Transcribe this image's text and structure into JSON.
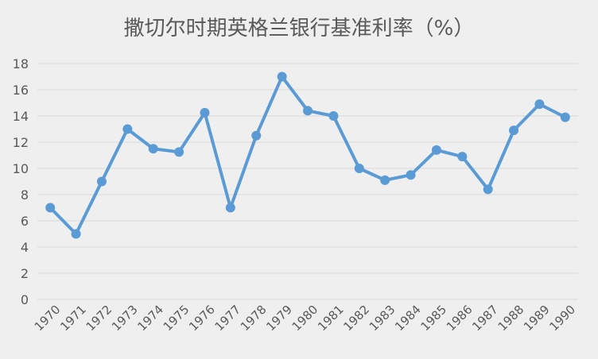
{
  "chart_data": {
    "type": "line",
    "title": "撒切尔时期英格兰银行基准利率（%）",
    "xlabel": "",
    "ylabel": "",
    "categories": [
      "1970",
      "1971",
      "1972",
      "1973",
      "1974",
      "1975",
      "1976",
      "1977",
      "1978",
      "1979",
      "1980",
      "1981",
      "1982",
      "1983",
      "1984",
      "1985",
      "1986",
      "1987",
      "1988",
      "1989",
      "1990"
    ],
    "values": [
      7,
      5,
      9,
      13,
      11.5,
      11.25,
      14.25,
      7,
      12.5,
      17,
      14.4,
      14,
      10,
      9.1,
      9.5,
      11.4,
      10.9,
      8.4,
      12.9,
      14.9,
      13.9
    ],
    "ylim": [
      0,
      18
    ],
    "yticks": [
      "0",
      "2",
      "4",
      "6",
      "8",
      "10",
      "12",
      "14",
      "16",
      "18"
    ],
    "grid": true,
    "colors": {
      "line": "#5b9bd5",
      "grid": "#d9d9d9",
      "background": "#efefef"
    }
  }
}
